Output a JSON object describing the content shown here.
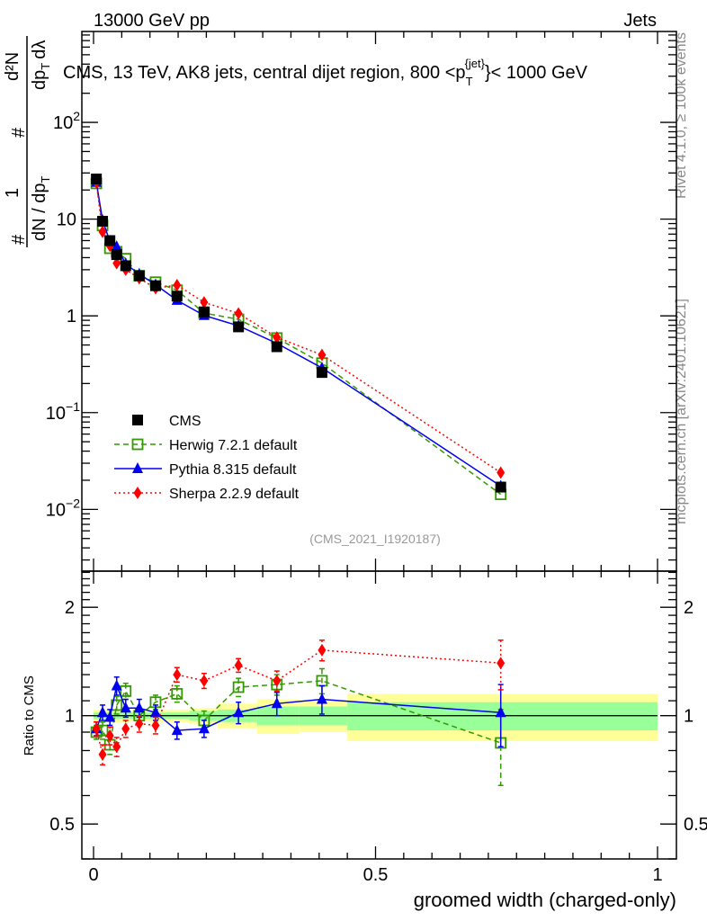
{
  "header": {
    "left": "13000 GeV pp",
    "right": "Jets"
  },
  "side_text": {
    "top": "Rivet 4.1.0, ≥ 100k events",
    "bottom": "mcplots.cern.ch [arXiv:2401.10621]"
  },
  "colors": {
    "cms": "#000000",
    "herwig": "#339900",
    "pythia": "#0000ee",
    "sherpa": "#ff0000",
    "band_inner": "#99ff99",
    "band_outer": "#ffff99"
  },
  "chart_data": [
    {
      "type": "scatter",
      "title": "CMS, 13 TeV, AK8 jets, central dijet region, 800 <p_T^{jet}< 1000 GeV",
      "title_parts": {
        "main": "CMS, 13 TeV, AK8 jets, central dijet region, 800 <p",
        "sup": "{jet}",
        "sub": "T",
        "tail": "}< 1000 GeV"
      },
      "ylabel_parts": {
        "hash": "#",
        "one": "1",
        "dn": "dN / dp",
        "d2n": "d²N",
        "dpt": "dp",
        "t": "T",
        "dl": "dλ"
      },
      "yscale": "log",
      "ylim": [
        0.0023,
        870
      ],
      "yticks": [
        {
          "v": 0.01,
          "label": "10",
          "exp": "−2"
        },
        {
          "v": 0.1,
          "label": "10",
          "exp": "−1"
        },
        {
          "v": 1,
          "label": "1",
          "exp": ""
        },
        {
          "v": 10,
          "label": "10",
          "exp": ""
        },
        {
          "v": 100,
          "label": "10",
          "exp": "2"
        }
      ],
      "xlim": [
        -0.02,
        1.03
      ],
      "watermark": "(CMS_2021_I1920187)",
      "x": [
        0.005,
        0.016,
        0.029,
        0.041,
        0.057,
        0.081,
        0.11,
        0.148,
        0.196,
        0.257,
        0.325,
        0.405,
        0.722
      ],
      "series": [
        {
          "name": "CMS",
          "key": "cms",
          "marker": "square-filled",
          "line": "none",
          "values": [
            26,
            9.5,
            6.0,
            4.3,
            3.3,
            2.6,
            2.05,
            1.6,
            1.1,
            0.77,
            0.48,
            0.26,
            0.017
          ]
        },
        {
          "name": "Herwig 7.2.1 default",
          "key": "herwig",
          "marker": "square-open",
          "line": "dashed",
          "values": [
            23.4,
            8.6,
            5.0,
            4.6,
            3.9,
            2.6,
            2.23,
            1.84,
            1.07,
            0.92,
            0.59,
            0.325,
            0.0143
          ]
        },
        {
          "name": "Pythia 8.315 default",
          "key": "pythia",
          "marker": "triangle",
          "line": "solid",
          "values": [
            24,
            9.7,
            5.9,
            5.2,
            3.45,
            2.7,
            2.1,
            1.45,
            1.01,
            0.79,
            0.52,
            0.29,
            0.0174
          ]
        },
        {
          "name": "Sherpa 2.2.9 default",
          "key": "sherpa",
          "marker": "diamond",
          "line": "dotted",
          "values": [
            24,
            7.4,
            5.3,
            3.5,
            3.0,
            2.45,
            1.93,
            2.08,
            1.38,
            1.06,
            0.6,
            0.395,
            0.024
          ]
        }
      ]
    },
    {
      "type": "scatter",
      "ylabel": "Ratio to CMS",
      "xlabel": "groomed width (charged-only)",
      "yscale": "log",
      "ylim": [
        0.4,
        2.52
      ],
      "yticks": [
        {
          "v": 0.5,
          "label": "0.5"
        },
        {
          "v": 1,
          "label": "1"
        },
        {
          "v": 2,
          "label": "2"
        }
      ],
      "xticks": [
        {
          "v": 0,
          "label": "0"
        },
        {
          "v": 0.5,
          "label": "0.5"
        },
        {
          "v": 1,
          "label": "1"
        }
      ],
      "xlim": [
        -0.02,
        1.03
      ],
      "x": [
        0.005,
        0.016,
        0.029,
        0.041,
        0.057,
        0.081,
        0.11,
        0.148,
        0.196,
        0.257,
        0.325,
        0.405,
        0.722
      ],
      "bands": {
        "edges": [
          0,
          0.01,
          0.02,
          0.035,
          0.05,
          0.065,
          0.1,
          0.125,
          0.17,
          0.22,
          0.29,
          0.365,
          0.45,
          1.0
        ],
        "inner": [
          0.02,
          0.02,
          0.02,
          0.02,
          0.02,
          0.02,
          0.02,
          0.02,
          0.03,
          0.04,
          0.06,
          0.06,
          0.09
        ],
        "outer": [
          0.04,
          0.04,
          0.04,
          0.04,
          0.04,
          0.03,
          0.04,
          0.04,
          0.05,
          0.08,
          0.11,
          0.1,
          0.15
        ]
      },
      "series": [
        {
          "name": "Herwig 7.2.1 default",
          "key": "herwig",
          "marker": "square-open",
          "line": "dashed",
          "values": [
            0.9,
            0.91,
            0.83,
            1.07,
            1.17,
            1.0,
            1.09,
            1.15,
            0.97,
            1.2,
            1.22,
            1.25,
            0.84
          ],
          "errors": [
            0.04,
            0.05,
            0.05,
            0.06,
            0.06,
            0.05,
            0.05,
            0.06,
            0.06,
            0.07,
            0.08,
            0.1,
            0.2
          ]
        },
        {
          "name": "Pythia 8.315 default",
          "key": "pythia",
          "marker": "triangle",
          "line": "solid",
          "values": [
            0.92,
            1.02,
            0.99,
            1.21,
            1.05,
            1.05,
            1.02,
            0.91,
            0.92,
            1.02,
            1.08,
            1.11,
            1.02
          ],
          "errors": [
            0.04,
            0.05,
            0.05,
            0.07,
            0.06,
            0.06,
            0.05,
            0.05,
            0.05,
            0.07,
            0.08,
            0.1,
            0.2
          ]
        },
        {
          "name": "Sherpa 2.2.9 default",
          "key": "sherpa",
          "marker": "diamond",
          "line": "dotted",
          "values": [
            0.92,
            0.78,
            0.88,
            0.82,
            0.92,
            0.95,
            0.94,
            1.3,
            1.25,
            1.38,
            1.25,
            1.52,
            1.4
          ],
          "errors": [
            0.04,
            0.05,
            0.05,
            0.05,
            0.05,
            0.05,
            0.05,
            0.06,
            0.06,
            0.06,
            0.08,
            0.1,
            0.22
          ]
        }
      ]
    }
  ]
}
